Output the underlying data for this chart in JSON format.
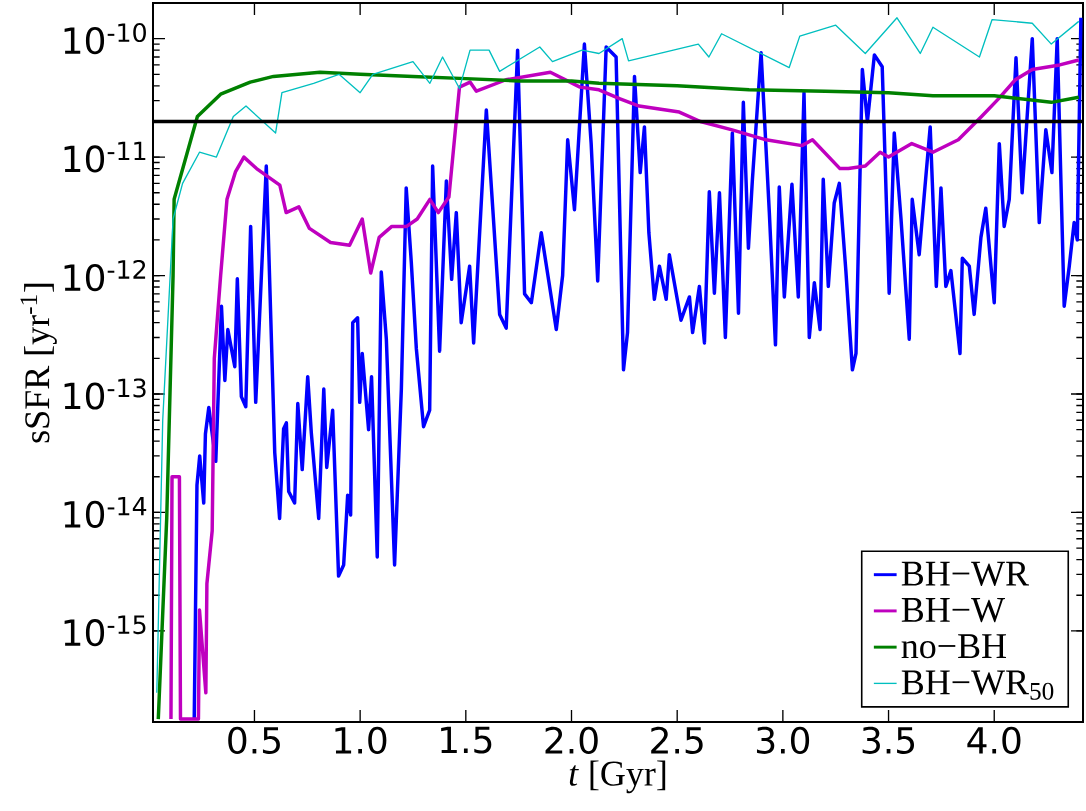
{
  "chart_data": {
    "type": "line",
    "xlabel": "*t* [Gyr]",
    "ylabel": "sSFR [yr$^{-1}$]",
    "log": "y",
    "legend": "bottom right",
    "xlim": [
      0.02,
      4.42
    ],
    "ylim": [
      1.7e-16,
      2e-10
    ],
    "xticks": [
      {
        "value": 0.5,
        "label": "0.5"
      },
      {
        "value": 1.0,
        "label": "1.0"
      },
      {
        "value": 1.5,
        "label": "1.5"
      },
      {
        "value": 2.0,
        "label": "2.0"
      },
      {
        "value": 2.5,
        "label": "2.5"
      },
      {
        "value": 3.0,
        "label": "3.0"
      },
      {
        "value": 3.5,
        "label": "3.5"
      },
      {
        "value": 4.0,
        "label": "4.0"
      }
    ],
    "yticks": [
      {
        "value": 1e-15,
        "label": "10$^{-15}$"
      },
      {
        "value": 1e-14,
        "label": "10$^{-14}$"
      },
      {
        "value": 1e-13,
        "label": "10$^{-13}$"
      },
      {
        "value": 1e-12,
        "label": "10$^{-12}$"
      },
      {
        "value": 1e-11,
        "label": "10$^{-11}$"
      },
      {
        "value": 1e-10,
        "label": "10$^{-10}$"
      }
    ],
    "ref_lines": [
      {
        "axis": "y",
        "value": 2e-11,
        "color": "#000000"
      }
    ],
    "series": [
      {
        "name": "BH−WR",
        "color": "#0000ff",
        "x": [
          0.215,
          0.228,
          0.241,
          0.26,
          0.268,
          0.284,
          0.317,
          0.344,
          0.36,
          0.374,
          0.407,
          0.419,
          0.438,
          0.459,
          0.482,
          0.506,
          0.556,
          0.596,
          0.619,
          0.638,
          0.651,
          0.662,
          0.69,
          0.705,
          0.726,
          0.752,
          0.769,
          0.804,
          0.828,
          0.842,
          0.87,
          0.898,
          0.922,
          0.941,
          0.955,
          0.965,
          0.988,
          0.998,
          1.01,
          1.04,
          1.054,
          1.081,
          1.1,
          1.124,
          1.163,
          1.195,
          1.218,
          1.242,
          1.266,
          1.3,
          1.329,
          1.343,
          1.376,
          1.408,
          1.433,
          1.455,
          1.478,
          1.518,
          1.537,
          1.597,
          1.627,
          1.66,
          1.691,
          1.745,
          1.778,
          1.81,
          1.857,
          1.928,
          1.958,
          1.982,
          2.014,
          2.061,
          2.093,
          2.124,
          2.164,
          2.211,
          2.246,
          2.265,
          2.298,
          2.325,
          2.345,
          2.366,
          2.392,
          2.416,
          2.448,
          2.463,
          2.518,
          2.558,
          2.573,
          2.605,
          2.629,
          2.652,
          2.676,
          2.7,
          2.728,
          2.761,
          2.79,
          2.813,
          2.837,
          2.856,
          2.897,
          2.936,
          2.965,
          2.983,
          3.007,
          3.043,
          3.073,
          3.1,
          3.125,
          3.149,
          3.176,
          3.191,
          3.215,
          3.243,
          3.267,
          3.298,
          3.329,
          3.346,
          3.376,
          3.4,
          3.433,
          3.47,
          3.503,
          3.527,
          3.559,
          3.598,
          3.612,
          3.645,
          3.669,
          3.697,
          3.726,
          3.748,
          3.771,
          3.795,
          3.838,
          3.849,
          3.882,
          3.905,
          3.937,
          3.96,
          4.0,
          4.024,
          4.047,
          4.071,
          4.103,
          4.132,
          4.18,
          4.213,
          4.244,
          4.273,
          4.298,
          4.331,
          4.355,
          4.378,
          4.393,
          4.41
        ],
        "values": [
          1.8e-16,
          1.7e-14,
          3e-14,
          1.2e-14,
          4.6e-14,
          7.7e-14,
          2.7e-14,
          5.5e-13,
          1.3e-13,
          3.5e-13,
          1.7e-13,
          9.4e-13,
          9.5e-14,
          7.8e-14,
          2.6e-12,
          8.5e-14,
          8.4e-12,
          3.2e-14,
          8.9e-15,
          5.1e-14,
          5.7e-14,
          1.5e-14,
          1.2e-14,
          8.3e-14,
          2.3e-14,
          1.4e-13,
          4.7e-14,
          8.9e-15,
          1.1e-13,
          2.4e-14,
          7.3e-14,
          2.9e-15,
          3.6e-15,
          1.4e-14,
          9.5e-15,
          4e-13,
          4.4e-13,
          8.5e-14,
          2.2e-13,
          5e-14,
          1.4e-13,
          4.2e-15,
          1.07e-12,
          2.9e-13,
          3.6e-15,
          1.1e-13,
          5.5e-12,
          1.3e-12,
          2.4e-13,
          5.3e-14,
          7.3e-14,
          8.4e-12,
          2.3e-13,
          6.3e-12,
          9.3e-13,
          3.4e-12,
          4e-13,
          1.2e-12,
          2.7e-13,
          2.5e-11,
          3.8e-12,
          4.7e-13,
          3.6e-13,
          8e-11,
          7e-13,
          5.9e-13,
          2.3e-12,
          3.5e-13,
          1e-12,
          1.4e-11,
          3.6e-12,
          9e-11,
          1.3e-11,
          9e-13,
          8.5e-11,
          7e-11,
          1.6e-13,
          3.3e-13,
          4.8e-11,
          7.4e-12,
          1.8e-11,
          2.3e-12,
          6.3e-13,
          1.2e-12,
          6.3e-13,
          1.5e-12,
          4.2e-13,
          6.6e-13,
          3.3e-13,
          8.1e-13,
          2.7e-13,
          5.1e-12,
          7.1e-13,
          5e-12,
          3e-13,
          1.6e-11,
          4.8e-13,
          2.9e-11,
          1.7e-12,
          6.5e-12,
          7.6e-11,
          3.4e-12,
          2.6e-13,
          5.6e-12,
          6.6e-13,
          5.9e-12,
          6.6e-13,
          3.5e-11,
          3e-13,
          8.7e-13,
          3.5e-13,
          6.5e-12,
          8.1e-13,
          4.1e-12,
          6e-12,
          1.1e-12,
          1.6e-13,
          2.2e-13,
          5.5e-11,
          2e-11,
          7.3e-11,
          5.8e-11,
          7.1e-13,
          1.6e-11,
          3e-12,
          2.9e-13,
          4.4e-12,
          1.5e-12,
          4.8e-12,
          1.8e-11,
          8.1e-13,
          5.5e-12,
          8.1e-13,
          1.1e-12,
          2.2e-13,
          1.4e-12,
          1.2e-12,
          4.7e-13,
          2.1e-12,
          3.7e-12,
          5.9e-13,
          1.3e-11,
          2.6e-12,
          4.4e-12,
          6.9e-11,
          5e-12,
          1e-10,
          2.8e-12,
          1.7e-11,
          7.4e-12,
          1e-10,
          5.5e-13,
          1.2e-12,
          2.8e-12,
          2e-12,
          1.5e-10
        ]
      },
      {
        "name": "BH−W",
        "color": "#bf00bf",
        "x": [
          0.105,
          0.11,
          0.145,
          0.15,
          0.235,
          0.24,
          0.27,
          0.275,
          0.3,
          0.31,
          0.34,
          0.37,
          0.41,
          0.45,
          0.51,
          0.62,
          0.65,
          0.71,
          0.76,
          0.86,
          0.95,
          1.01,
          1.05,
          1.09,
          1.15,
          1.22,
          1.27,
          1.33,
          1.37,
          1.42,
          1.47,
          1.52,
          1.55,
          1.69,
          1.9,
          2.04,
          2.13,
          2.23,
          2.32,
          2.51,
          2.61,
          2.76,
          2.92,
          3.09,
          3.14,
          3.27,
          3.31,
          3.39,
          3.46,
          3.5,
          3.61,
          3.71,
          3.83,
          3.94,
          4.02,
          4.1,
          4.18,
          4.31,
          4.4
        ],
        "values": [
          1.8e-16,
          2e-14,
          2e-14,
          1.8e-16,
          1.8e-16,
          1.5e-15,
          3e-16,
          2.5e-15,
          7e-15,
          2e-13,
          1e-12,
          4.4e-12,
          7.5e-12,
          1e-11,
          8e-12,
          5.8e-12,
          3.4e-12,
          3.8e-12,
          2.5e-12,
          1.9e-12,
          1.8e-12,
          3e-12,
          1.05e-12,
          2.1e-12,
          2.6e-12,
          2.6e-12,
          3e-12,
          4.4e-12,
          3.4e-12,
          4.6e-12,
          3.9e-11,
          4.3e-11,
          3.6e-11,
          4.5e-11,
          5.2e-11,
          3.9e-11,
          3.7e-11,
          3.1e-11,
          2.7e-11,
          2.4e-11,
          2e-11,
          1.7e-11,
          1.4e-11,
          1.25e-11,
          1.4e-11,
          8e-12,
          8e-12,
          8.4e-12,
          1.1e-11,
          1e-11,
          1.3e-11,
          1.1e-11,
          1.4e-11,
          2.2e-11,
          3.1e-11,
          4.5e-11,
          5.5e-11,
          6e-11,
          6.6e-11
        ]
      },
      {
        "name": "no−BH",
        "color": "#008000",
        "x": [
          0.045,
          0.085,
          0.115,
          0.12,
          0.23,
          0.34,
          0.48,
          0.59,
          0.81,
          1.0,
          1.25,
          1.5,
          1.75,
          2.0,
          2.13,
          2.5,
          2.84,
          3.2,
          3.5,
          3.71,
          4.0,
          4.27,
          4.4
        ],
        "values": [
          1.8e-16,
          9e-15,
          1e-12,
          4.4e-12,
          2.2e-11,
          3.4e-11,
          4.3e-11,
          4.8e-11,
          5.2e-11,
          5e-11,
          4.8e-11,
          4.6e-11,
          4.4e-11,
          4.4e-11,
          4.2e-11,
          4e-11,
          3.7e-11,
          3.6e-11,
          3.5e-11,
          3.3e-11,
          3.3e-11,
          2.9e-11,
          3.2e-11
        ]
      },
      {
        "name": "BH−WR$_{50}$",
        "color": "#00bfbf",
        "x": [
          0.038,
          0.066,
          0.115,
          0.16,
          0.24,
          0.32,
          0.4,
          0.46,
          0.6,
          0.63,
          0.78,
          0.9,
          1.0,
          1.06,
          1.25,
          1.33,
          1.39,
          1.47,
          1.52,
          1.61,
          1.66,
          1.85,
          1.91,
          2.05,
          2.13,
          2.24,
          2.27,
          2.6,
          2.65,
          2.71,
          3.03,
          3.08,
          3.25,
          3.39,
          3.54,
          3.65,
          3.71,
          3.93,
          3.99,
          4.18,
          4.27,
          4.4
        ],
        "values": [
          3e-16,
          6e-14,
          3e-12,
          6e-12,
          1.1e-11,
          1e-11,
          2.2e-11,
          2.7e-11,
          1.6e-11,
          3.5e-11,
          4.2e-11,
          5e-11,
          3.5e-11,
          5e-11,
          6.4e-11,
          4.2e-11,
          7e-11,
          3.8e-11,
          8e-11,
          8e-11,
          5.3e-11,
          8.5e-11,
          6.4e-11,
          8e-11,
          7.5e-11,
          1e-10,
          6.5e-11,
          9e-11,
          7e-11,
          1.1e-10,
          5.7e-11,
          1.05e-10,
          1.3e-10,
          7.5e-11,
          1.5e-10,
          7.5e-11,
          1.25e-10,
          7e-11,
          1.45e-10,
          1.35e-10,
          9e-11,
          1.4e-10
        ]
      }
    ]
  }
}
